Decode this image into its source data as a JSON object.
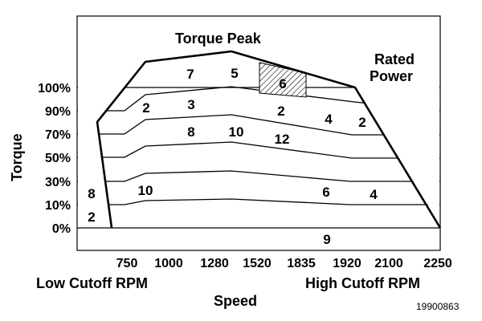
{
  "title": "Torque Peak",
  "rated_power_label": [
    "Rated",
    "Power"
  ],
  "y_axis_label": "Torque",
  "x_axis_label": "Speed",
  "y_ticks": [
    "100%",
    "90%",
    "70%",
    "50%",
    "30%",
    "10%",
    "0%"
  ],
  "x_ticks": [
    "750",
    "1000",
    "1280",
    "1520",
    "1835",
    "1920",
    "2100",
    "2250"
  ],
  "low_cutoff_label": "Low Cutoff RPM",
  "high_cutoff_label": "High Cutoff RPM",
  "figure_id": "19900863",
  "region_numbers": [
    "7",
    "5",
    "6",
    "2",
    "3",
    "2",
    "4",
    "2",
    "8",
    "10",
    "12",
    "8",
    "10",
    "6",
    "4",
    "2",
    "9"
  ],
  "highlighted_region": "6"
}
